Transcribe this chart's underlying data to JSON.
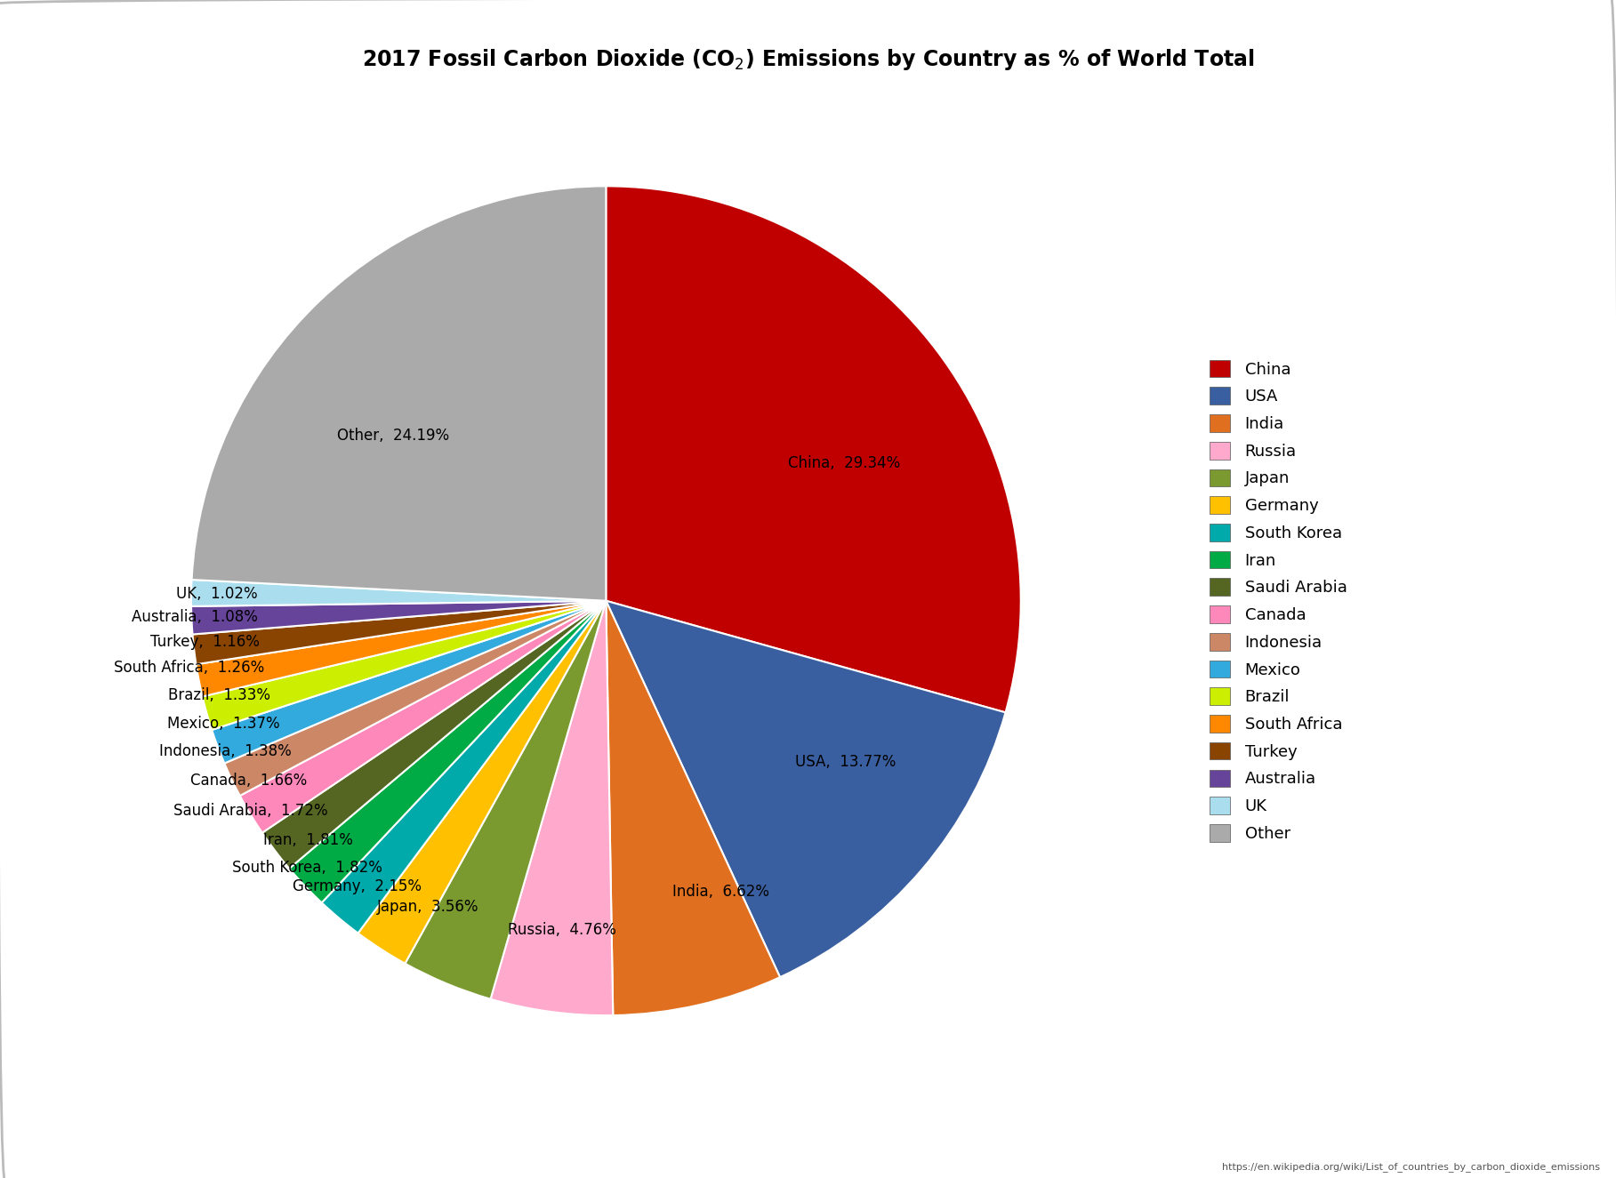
{
  "title": "2017 Fossil Carbon Dioxide (CO₂) Emissions by Country as % of World Total",
  "url": "https://en.wikipedia.org/wiki/List_of_countries_by_carbon_dioxide_emissions",
  "countries": [
    "China",
    "USA",
    "India",
    "Russia",
    "Japan",
    "Germany",
    "South Korea",
    "Iran",
    "Saudi Arabia",
    "Canada",
    "Indonesia",
    "Mexico",
    "Brazil",
    "South Africa",
    "Turkey",
    "Australia",
    "UK",
    "Other"
  ],
  "values": [
    29.34,
    13.77,
    6.62,
    4.76,
    3.56,
    2.15,
    1.82,
    1.81,
    1.72,
    1.66,
    1.38,
    1.37,
    1.33,
    1.26,
    1.16,
    1.08,
    1.02,
    24.19
  ],
  "colors": [
    "#c00000",
    "#3a5fa0",
    "#e07020",
    "#ffaacc",
    "#7a9a30",
    "#ffc000",
    "#00aaaa",
    "#00aa44",
    "#556622",
    "#ff88bb",
    "#cc8866",
    "#33aadd",
    "#ccee00",
    "#ff8800",
    "#884400",
    "#664499",
    "#aaddee",
    "#aaaaaa"
  ],
  "legend_colors": [
    "#c00000",
    "#3a5fa0",
    "#e07020",
    "#ffaacc",
    "#7a9a30",
    "#ffc000",
    "#00aaaa",
    "#00aa44",
    "#556622",
    "#ff88bb",
    "#cc8866",
    "#33aadd",
    "#ccee00",
    "#ff8800",
    "#884400",
    "#664499",
    "#aaddee",
    "#aaaaaa"
  ],
  "background_color": "#ffffff",
  "title_fontsize": 17,
  "label_fontsize": 12,
  "legend_fontsize": 13,
  "border_color": "#aaaaaa"
}
